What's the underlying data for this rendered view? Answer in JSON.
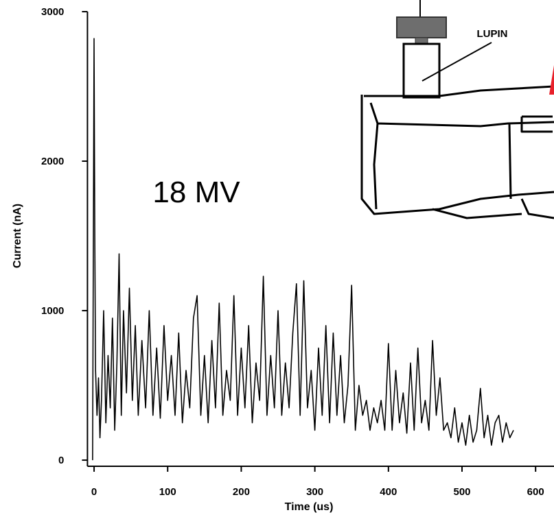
{
  "chart_data": {
    "type": "line",
    "xlabel": "Time (us)",
    "ylabel": "Current (nA)",
    "annotations": [
      "18 MV",
      "LUPIN"
    ],
    "color": "#000000",
    "xlim": [
      -9,
      625
    ],
    "xticks": [
      0,
      100,
      200,
      300,
      400,
      500,
      600
    ],
    "ylim": [
      -41,
      3000
    ],
    "yticks": [
      0,
      1000,
      2000,
      3000
    ],
    "x": [
      -2,
      0,
      1,
      2,
      4,
      6,
      8,
      10,
      13,
      16,
      19,
      22,
      25,
      28,
      31,
      34,
      37,
      40,
      44,
      48,
      52,
      56,
      60,
      65,
      70,
      75,
      80,
      85,
      90,
      95,
      100,
      105,
      110,
      115,
      120,
      125,
      130,
      135,
      140,
      145,
      150,
      155,
      160,
      165,
      170,
      175,
      180,
      185,
      190,
      195,
      200,
      205,
      210,
      215,
      220,
      225,
      230,
      235,
      240,
      245,
      250,
      255,
      260,
      265,
      270,
      275,
      280,
      285,
      290,
      295,
      300,
      305,
      310,
      315,
      320,
      325,
      330,
      335,
      340,
      345,
      350,
      355,
      360,
      365,
      370,
      375,
      380,
      385,
      390,
      395,
      400,
      405,
      410,
      415,
      420,
      425,
      430,
      435,
      440,
      445,
      450,
      455,
      460,
      465,
      470,
      475,
      480,
      485,
      490,
      495,
      500,
      505,
      510,
      515,
      520,
      525,
      530,
      535,
      540,
      545,
      550,
      555,
      560,
      565,
      570
    ],
    "values": [
      0,
      2820,
      1500,
      600,
      300,
      550,
      150,
      400,
      1000,
      250,
      700,
      350,
      950,
      200,
      650,
      1380,
      300,
      1000,
      450,
      1150,
      400,
      900,
      300,
      800,
      350,
      1000,
      300,
      750,
      280,
      900,
      400,
      700,
      300,
      850,
      250,
      600,
      350,
      950,
      1100,
      300,
      700,
      250,
      800,
      350,
      1050,
      300,
      600,
      400,
      1100,
      300,
      750,
      350,
      900,
      250,
      650,
      400,
      1230,
      300,
      700,
      350,
      1000,
      300,
      650,
      350,
      850,
      1180,
      300,
      1200,
      350,
      600,
      200,
      750,
      300,
      900,
      250,
      850,
      300,
      700,
      250,
      500,
      1170,
      200,
      500,
      300,
      400,
      200,
      350,
      250,
      400,
      200,
      780,
      200,
      600,
      250,
      450,
      180,
      650,
      200,
      750,
      250,
      400,
      200,
      800,
      300,
      550,
      200,
      250,
      150,
      350,
      120,
      250,
      100,
      300,
      120,
      200,
      480,
      150,
      300,
      100,
      250,
      300,
      120,
      250,
      150,
      200
    ]
  }
}
